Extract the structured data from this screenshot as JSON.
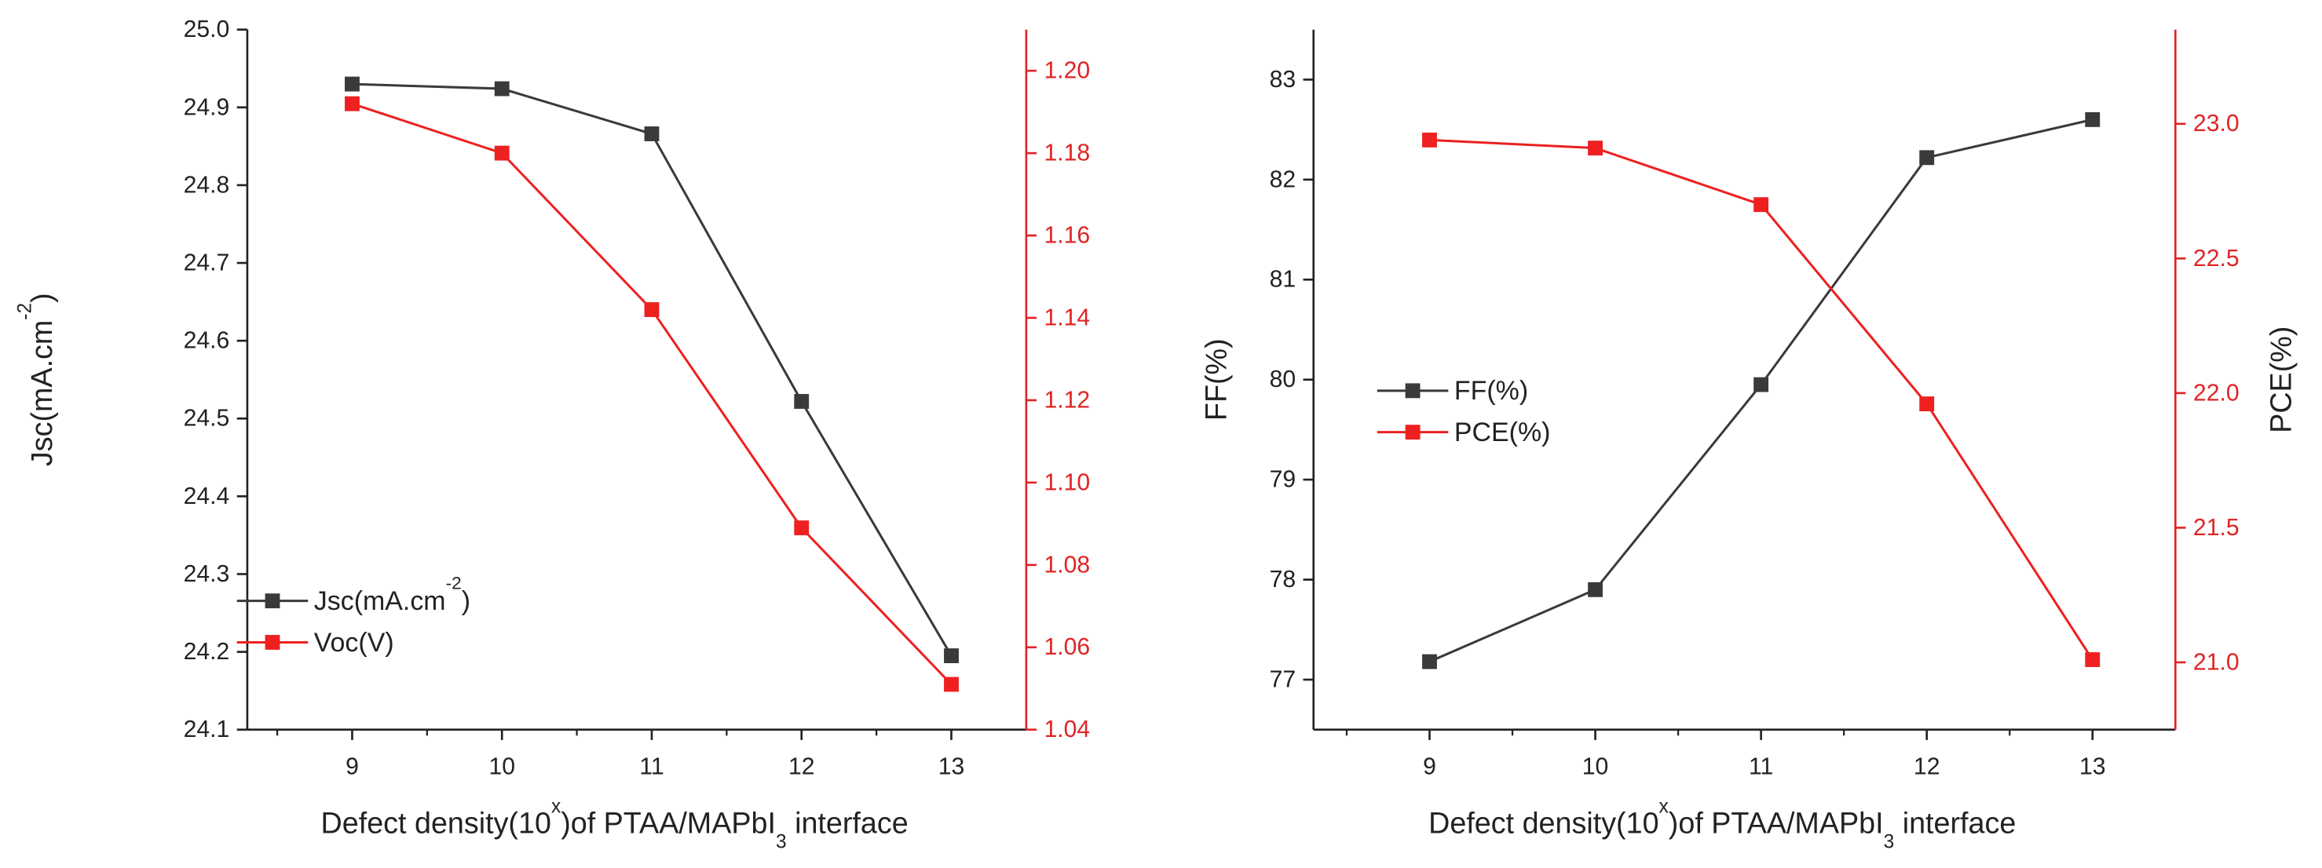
{
  "colors": {
    "black_series": "#3a3a3a",
    "red_series": "#ee2020",
    "axis": "#222222",
    "right_axis": "#e02424"
  },
  "chart_data": [
    {
      "type": "line",
      "x": [
        9,
        10,
        11,
        12,
        13
      ],
      "xticks": [
        "9",
        "10",
        "11",
        "12",
        "13"
      ],
      "xlim": [
        8.3,
        13.5
      ],
      "xlabel": {
        "pre": "Defect density(10",
        "sup": "x",
        "mid": ")of PTAA/MAPbI",
        "sub": "3",
        "post": " interface"
      },
      "left_axis": {
        "label": {
          "pre": "Jsc(mA.cm",
          "sup": "-2",
          "post": ")"
        },
        "ylim": [
          24.1,
          25.0
        ],
        "ticks": [
          "24.1",
          "24.2",
          "24.3",
          "24.4",
          "24.5",
          "24.6",
          "24.7",
          "24.8",
          "24.9",
          "25.0"
        ]
      },
      "right_axis": {
        "label": "",
        "ylim": [
          1.04,
          1.21
        ],
        "ticks": [
          "1.04",
          "1.06",
          "1.08",
          "1.10",
          "1.12",
          "1.14",
          "1.16",
          "1.18",
          "1.20"
        ]
      },
      "series": [
        {
          "name": "Jsc(mA.cm-2)",
          "legend": {
            "pre": "Jsc(mA.cm",
            "sup": "-2",
            "post": ")"
          },
          "axis": "left",
          "color": "black_series",
          "values": [
            24.93,
            24.924,
            24.866,
            24.522,
            24.195
          ]
        },
        {
          "name": "Voc(V)",
          "legend": {
            "pre": "Voc(V)",
            "sup": "",
            "post": ""
          },
          "axis": "right",
          "color": "red_series",
          "values": [
            1.192,
            1.18,
            1.142,
            1.089,
            1.051
          ]
        }
      ],
      "legend_position": "bottom-left"
    },
    {
      "type": "line",
      "x": [
        9,
        10,
        11,
        12,
        13
      ],
      "xticks": [
        "9",
        "10",
        "11",
        "12",
        "13"
      ],
      "xlim": [
        8.3,
        13.5
      ],
      "xlabel": {
        "pre": "Defect density(10",
        "sup": "x",
        "mid": ")of PTAA/MAPbI",
        "sub": "3",
        "post": " interface"
      },
      "left_axis": {
        "label": {
          "pre": "FF(%)",
          "sup": "",
          "post": ""
        },
        "ylim": [
          76.5,
          83.5
        ],
        "ticks": [
          "77",
          "78",
          "79",
          "80",
          "81",
          "82",
          "83"
        ]
      },
      "right_axis": {
        "label": "PCE(%)",
        "ylim": [
          20.75,
          23.35
        ],
        "ticks": [
          "21.0",
          "21.5",
          "22.0",
          "22.5",
          "23.0"
        ]
      },
      "series": [
        {
          "name": "FF(%)",
          "legend": {
            "pre": "FF(%)",
            "sup": "",
            "post": ""
          },
          "axis": "left",
          "color": "black_series",
          "values": [
            77.18,
            77.9,
            79.95,
            82.22,
            82.6
          ]
        },
        {
          "name": "PCE(%)",
          "legend": {
            "pre": "PCE(%)",
            "sup": "",
            "post": ""
          },
          "axis": "right",
          "color": "red_series",
          "values": [
            22.94,
            22.91,
            22.7,
            21.96,
            21.01
          ]
        }
      ],
      "legend_position": "center-left"
    }
  ]
}
